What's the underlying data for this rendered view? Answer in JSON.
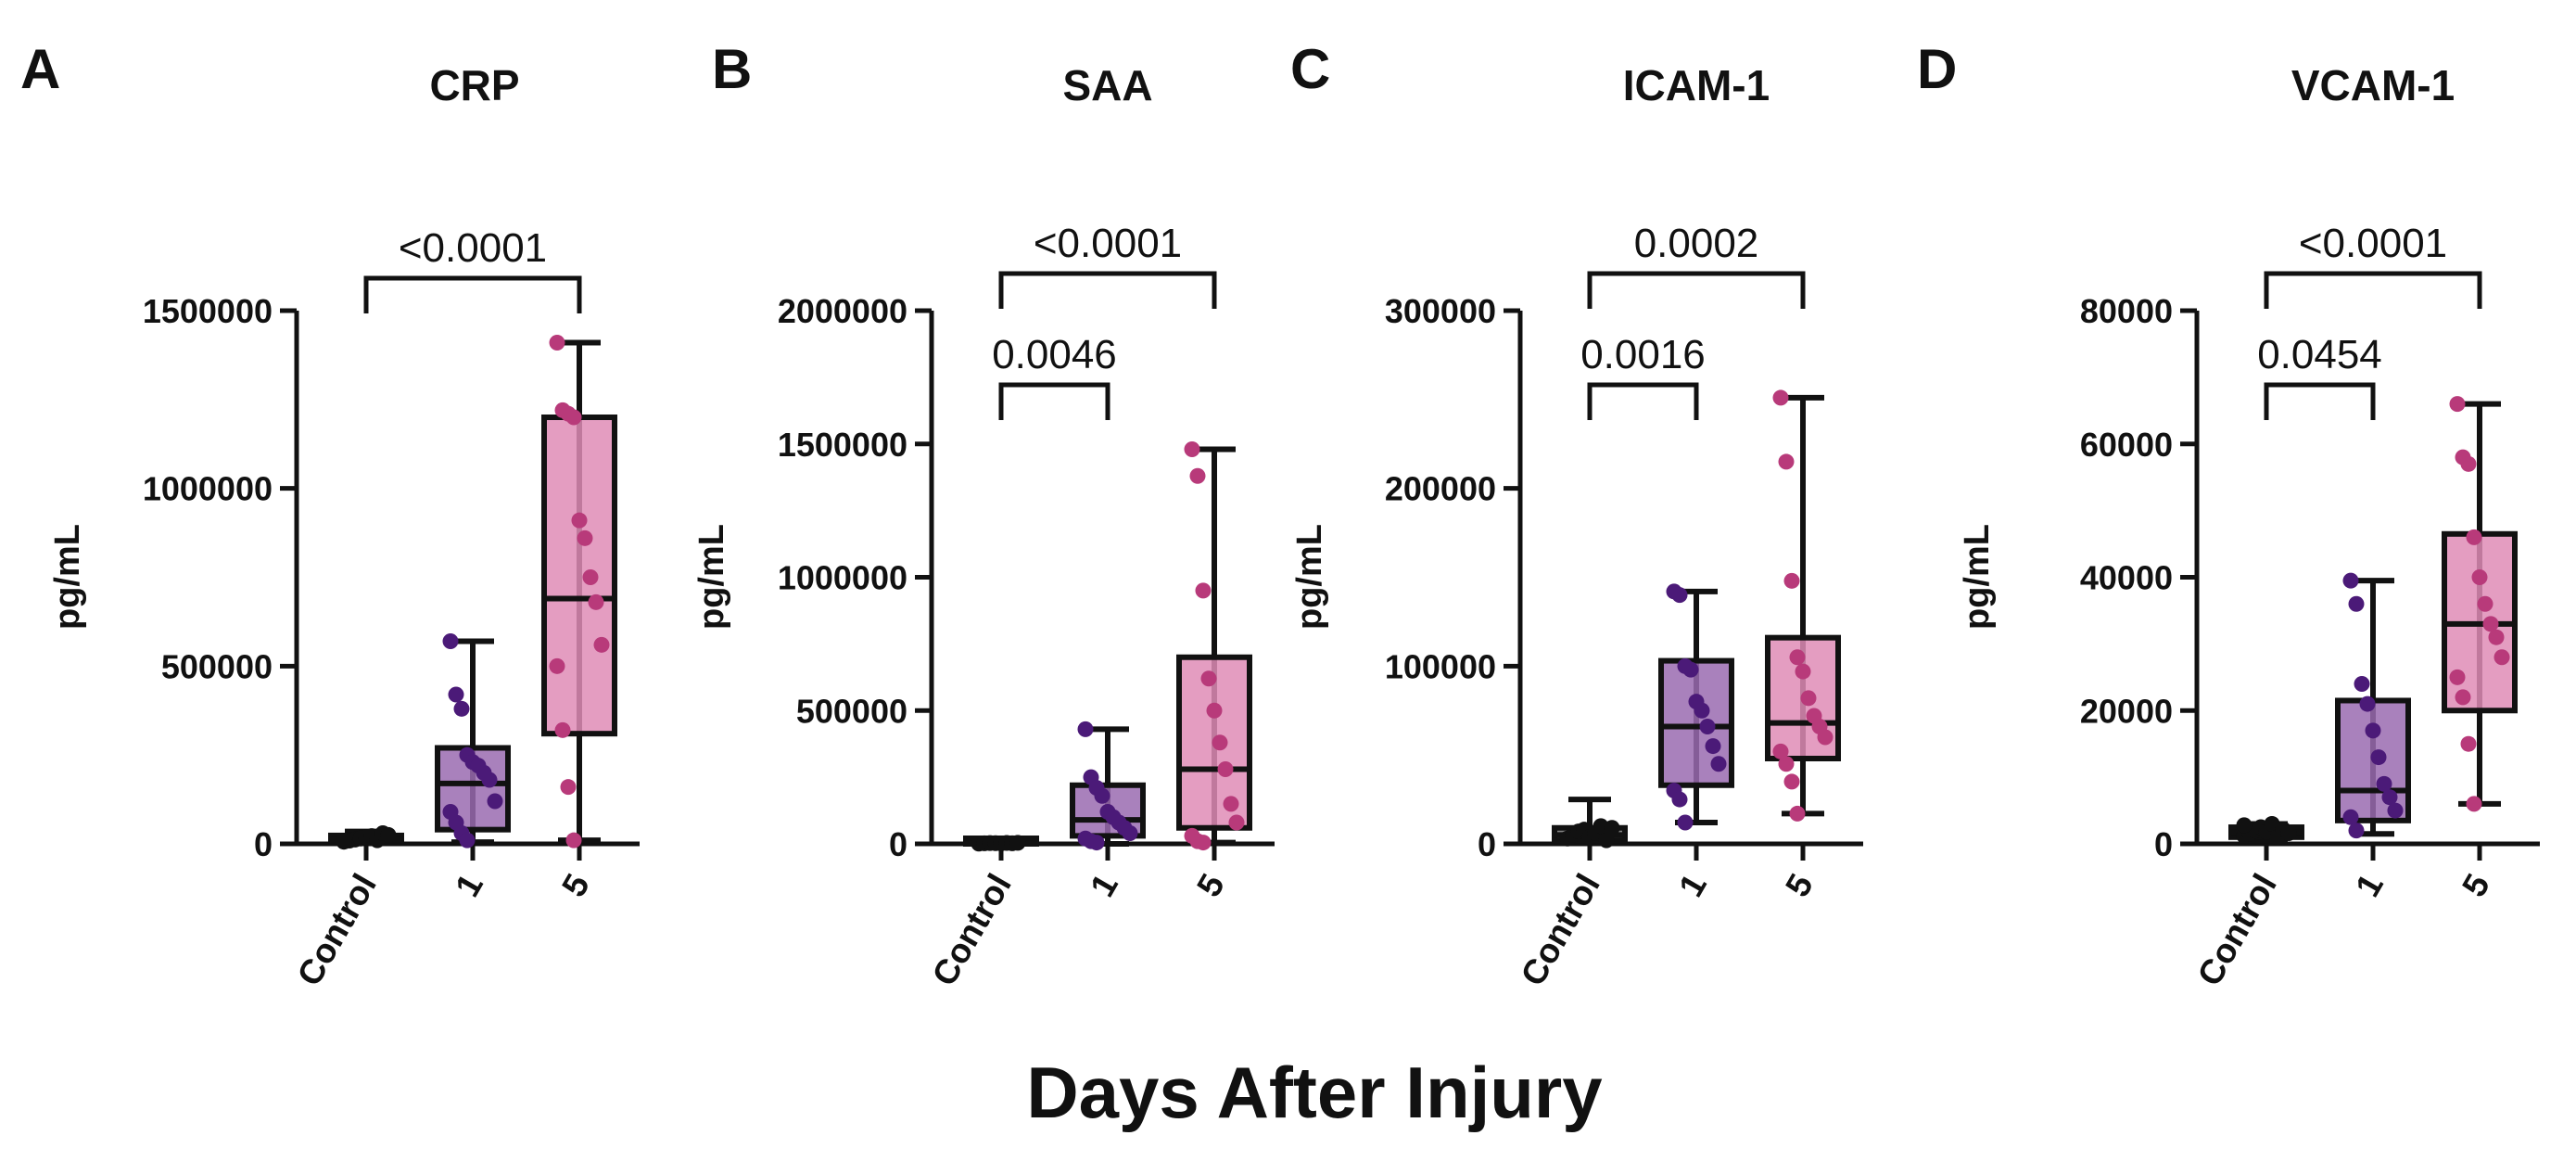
{
  "figure": {
    "xlabel": "Days After Injury"
  },
  "chart_data": [
    {
      "type": "box",
      "letter": "A",
      "title": "CRP",
      "ylabel": "pg/mL",
      "ylim": [
        0,
        1500000
      ],
      "yticks": [
        0,
        500000,
        1000000,
        1500000
      ],
      "ytick_labels": [
        "0",
        "500000",
        "1000000",
        "1500000"
      ],
      "categories": [
        "Control",
        "1",
        "5"
      ],
      "colors": {
        "control_box": "#6f6f6f",
        "control_pt": "#111111",
        "d1_box": "#9a6bb0",
        "d1_pt": "#4b1a78",
        "d5_box": "#df8cb6",
        "d5_pt": "#b83a7a"
      },
      "boxes": [
        {
          "min": 5000,
          "q1": 8000,
          "median": 12000,
          "q3": 20000,
          "max": 35000,
          "points": [
            6000,
            9000,
            12000,
            15000,
            18000,
            22000,
            10000,
            30000,
            25000,
            8000
          ]
        },
        {
          "min": 5000,
          "q1": 40000,
          "median": 170000,
          "q3": 270000,
          "max": 570000,
          "points": [
            570000,
            420000,
            380000,
            250000,
            230000,
            220000,
            200000,
            180000,
            120000,
            90000,
            60000,
            30000,
            10000
          ]
        },
        {
          "min": 10000,
          "q1": 310000,
          "median": 690000,
          "q3": 1200000,
          "max": 1410000,
          "points": [
            1410000,
            1220000,
            1210000,
            1200000,
            910000,
            860000,
            750000,
            680000,
            560000,
            500000,
            320000,
            160000,
            10000
          ]
        }
      ],
      "comparisons": [
        {
          "from": 0,
          "to": 2,
          "label": "<0.0001",
          "level": 1
        }
      ]
    },
    {
      "type": "box",
      "letter": "B",
      "title": "SAA",
      "ylabel": "pg/mL",
      "ylim": [
        0,
        2000000
      ],
      "yticks": [
        0,
        500000,
        1000000,
        1500000,
        2000000
      ],
      "ytick_labels": [
        "0",
        "500000",
        "1000000",
        "1500000",
        "2000000"
      ],
      "categories": [
        "Control",
        "1",
        "5"
      ],
      "colors": {
        "control_box": "#6f6f6f",
        "control_pt": "#111111",
        "d1_box": "#9a6bb0",
        "d1_pt": "#4b1a78",
        "d5_box": "#df8cb6",
        "d5_pt": "#b83a7a"
      },
      "boxes": [
        {
          "min": 0,
          "q1": 0,
          "median": 2000,
          "q3": 4000,
          "max": 6000,
          "points": [
            1000,
            2000,
            3000,
            2500,
            1500,
            3500,
            2000,
            4000
          ]
        },
        {
          "min": 0,
          "q1": 30000,
          "median": 90000,
          "q3": 220000,
          "max": 430000,
          "points": [
            430000,
            250000,
            210000,
            180000,
            120000,
            100000,
            80000,
            60000,
            40000,
            20000,
            10000,
            5000
          ]
        },
        {
          "min": 5000,
          "q1": 60000,
          "median": 280000,
          "q3": 700000,
          "max": 1480000,
          "points": [
            1480000,
            1380000,
            950000,
            620000,
            500000,
            380000,
            280000,
            150000,
            80000,
            30000,
            10000,
            5000
          ]
        }
      ],
      "comparisons": [
        {
          "from": 0,
          "to": 1,
          "label": "0.0046",
          "level": 1
        },
        {
          "from": 0,
          "to": 2,
          "label": "<0.0001",
          "level": 2
        }
      ]
    },
    {
      "type": "box",
      "letter": "C",
      "title": "ICAM-1",
      "ylabel": "pg/mL",
      "ylim": [
        0,
        300000
      ],
      "yticks": [
        0,
        100000,
        200000,
        300000
      ],
      "ytick_labels": [
        "0",
        "100000",
        "200000",
        "300000"
      ],
      "categories": [
        "Control",
        "1",
        "5"
      ],
      "colors": {
        "control_box": "#6f6f6f",
        "control_pt": "#111111",
        "d1_box": "#9a6bb0",
        "d1_pt": "#4b1a78",
        "d5_box": "#df8cb6",
        "d5_pt": "#b83a7a"
      },
      "boxes": [
        {
          "min": 1000,
          "q1": 2000,
          "median": 5000,
          "q3": 9000,
          "max": 25000,
          "points": [
            3000,
            5000,
            7000,
            8000,
            4000,
            6000,
            10000,
            2000,
            9000
          ]
        },
        {
          "min": 12000,
          "q1": 33000,
          "median": 66000,
          "q3": 103000,
          "max": 142000,
          "points": [
            142000,
            140000,
            100000,
            98000,
            80000,
            75000,
            66000,
            55000,
            45000,
            30000,
            25000,
            12000
          ]
        },
        {
          "min": 17000,
          "q1": 48000,
          "median": 68000,
          "q3": 116000,
          "max": 251000,
          "points": [
            251000,
            215000,
            148000,
            105000,
            97000,
            82000,
            72000,
            66000,
            60000,
            52000,
            45000,
            35000,
            17000
          ]
        }
      ],
      "comparisons": [
        {
          "from": 0,
          "to": 1,
          "label": "0.0016",
          "level": 1
        },
        {
          "from": 0,
          "to": 2,
          "label": "0.0002",
          "level": 2
        }
      ]
    },
    {
      "type": "box",
      "letter": "D",
      "title": "VCAM-1",
      "ylabel": "pg/mL",
      "ylim": [
        0,
        80000
      ],
      "yticks": [
        0,
        20000,
        40000,
        60000,
        80000
      ],
      "ytick_labels": [
        "0",
        "20000",
        "40000",
        "60000",
        "80000"
      ],
      "categories": [
        "Control",
        "1",
        "5"
      ],
      "colors": {
        "control_box": "#6f6f6f",
        "control_pt": "#111111",
        "d1_box": "#9a6bb0",
        "d1_pt": "#4b1a78",
        "d5_box": "#df8cb6",
        "d5_pt": "#b83a7a"
      },
      "boxes": [
        {
          "min": 500,
          "q1": 1000,
          "median": 1800,
          "q3": 2500,
          "max": 3000,
          "points": [
            1200,
            1500,
            2000,
            2500,
            1800,
            3000,
            1000,
            2200,
            1600,
            2800
          ]
        },
        {
          "min": 1500,
          "q1": 3500,
          "median": 8000,
          "q3": 21500,
          "max": 39500,
          "points": [
            39500,
            36000,
            24000,
            21000,
            17000,
            13000,
            9000,
            7000,
            5000,
            4000,
            2000
          ]
        },
        {
          "min": 6000,
          "q1": 20000,
          "median": 33000,
          "q3": 46500,
          "max": 66000,
          "points": [
            66000,
            58000,
            57000,
            46000,
            40000,
            36000,
            33000,
            31000,
            28000,
            25000,
            22000,
            15000,
            6000
          ]
        }
      ],
      "comparisons": [
        {
          "from": 0,
          "to": 1,
          "label": "0.0454",
          "level": 1
        },
        {
          "from": 0,
          "to": 2,
          "label": "<0.0001",
          "level": 2
        }
      ]
    }
  ]
}
